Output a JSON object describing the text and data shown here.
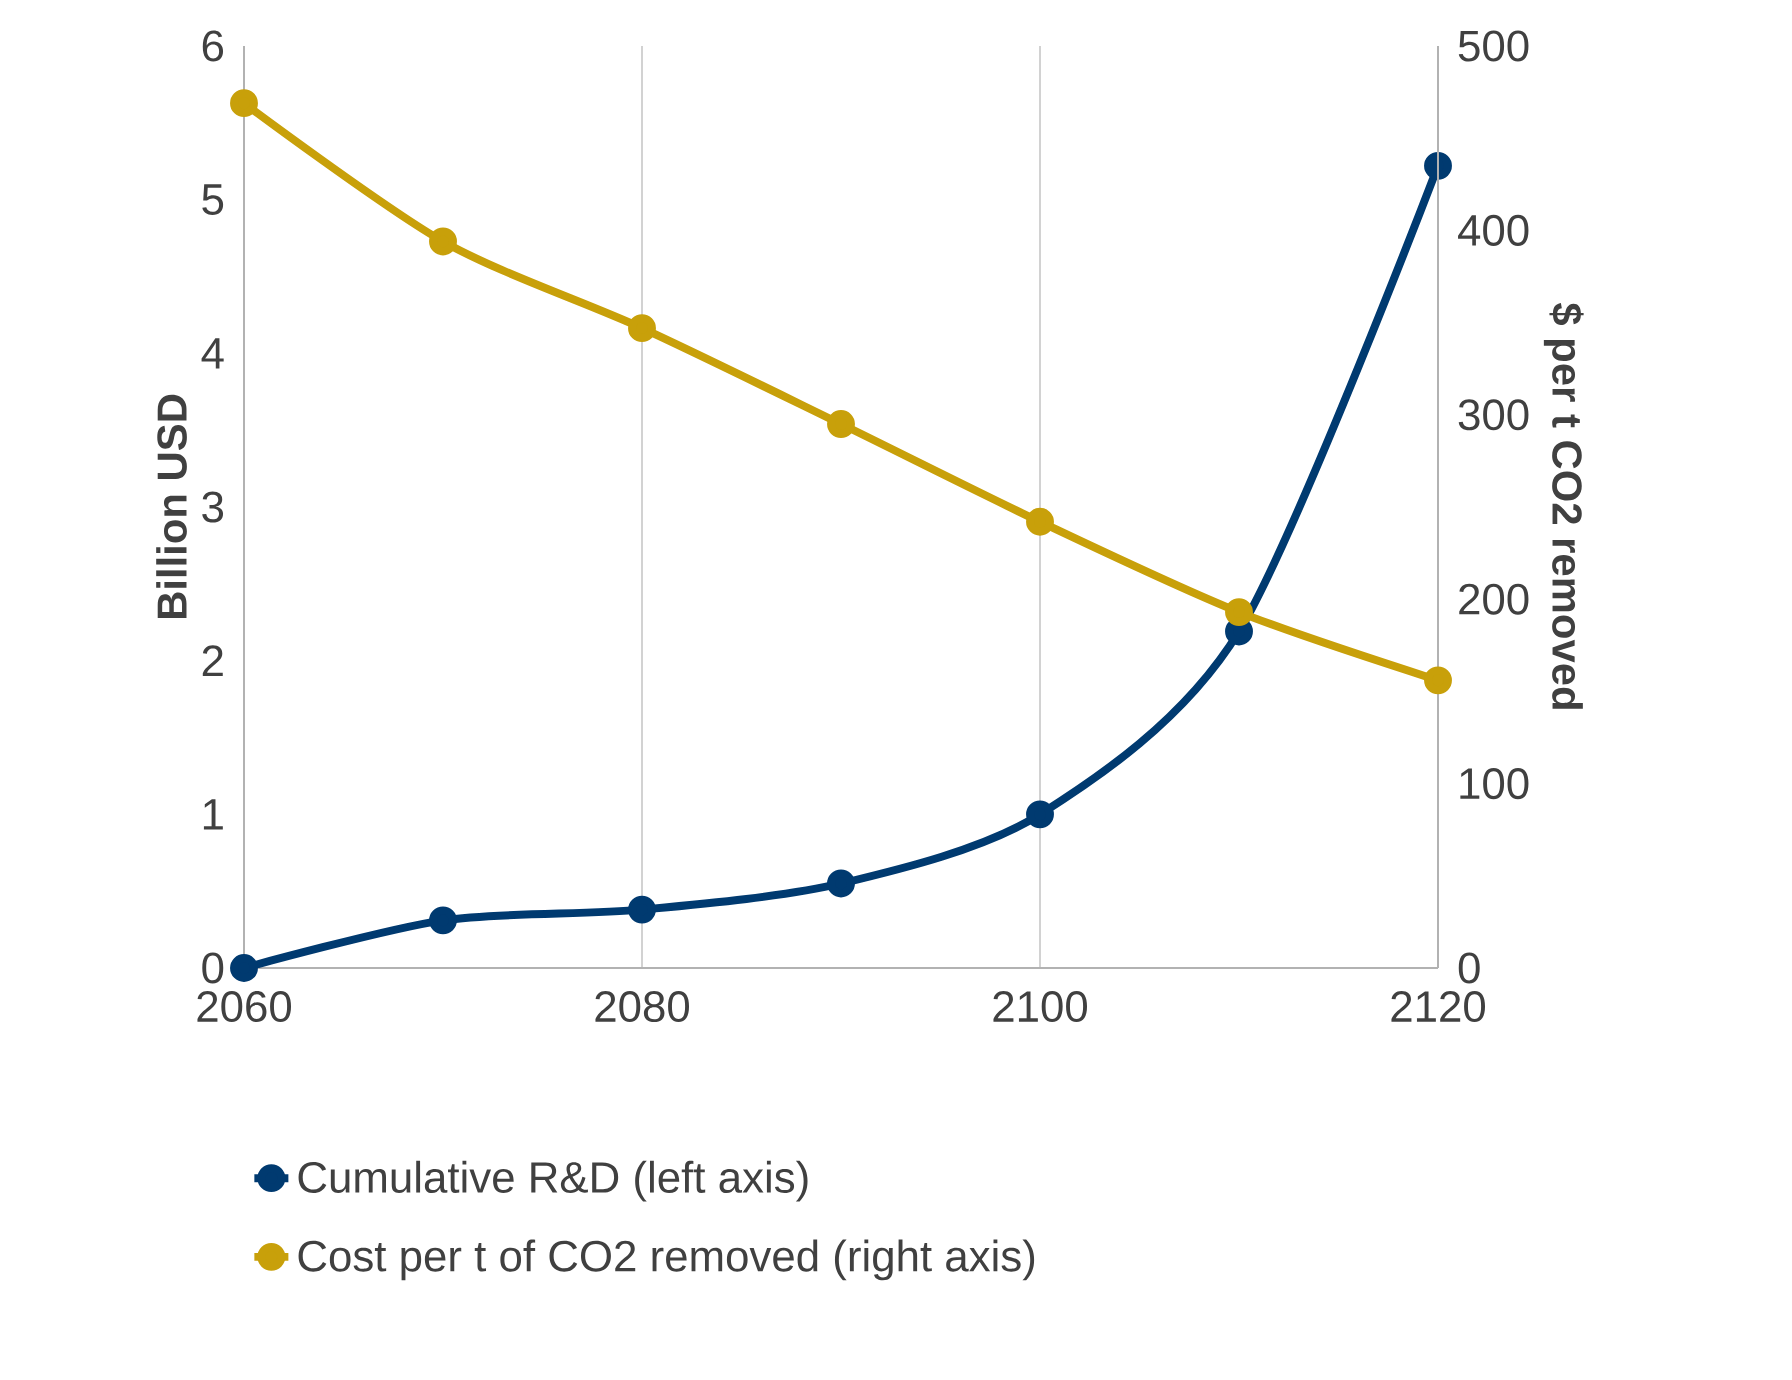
{
  "chart_data": {
    "type": "line",
    "ylabel": "Billion USD",
    "y2label": "$ per t CO2 removed",
    "x": [
      2060,
      2070,
      2080,
      2090,
      2100,
      2110,
      2120
    ],
    "series": [
      {
        "name": "Cumulative R&D (left axis)",
        "color": "#003a70",
        "values": [
          0,
          0.31,
          0.38,
          0.55,
          1.0,
          2.19,
          5.22
        ]
      },
      {
        "name": "Cost per t of CO2 removed (right axis)",
        "color": "#c8a00a",
        "axis": "y2",
        "values": [
          469,
          394,
          347,
          295,
          242,
          193,
          156
        ]
      }
    ],
    "xlim": [
      2060,
      2120
    ],
    "xticks": [
      2060,
      2080,
      2100,
      2120
    ],
    "ylim": [
      0,
      6
    ],
    "yticks": [
      0,
      1,
      2,
      3,
      4,
      5,
      6
    ],
    "y2lim": [
      0,
      500
    ],
    "y2ticks": [
      0,
      100,
      200,
      300,
      400,
      500
    ],
    "grid": "x",
    "legend": "bottom",
    "marker": "circle",
    "line_style": "solid"
  }
}
